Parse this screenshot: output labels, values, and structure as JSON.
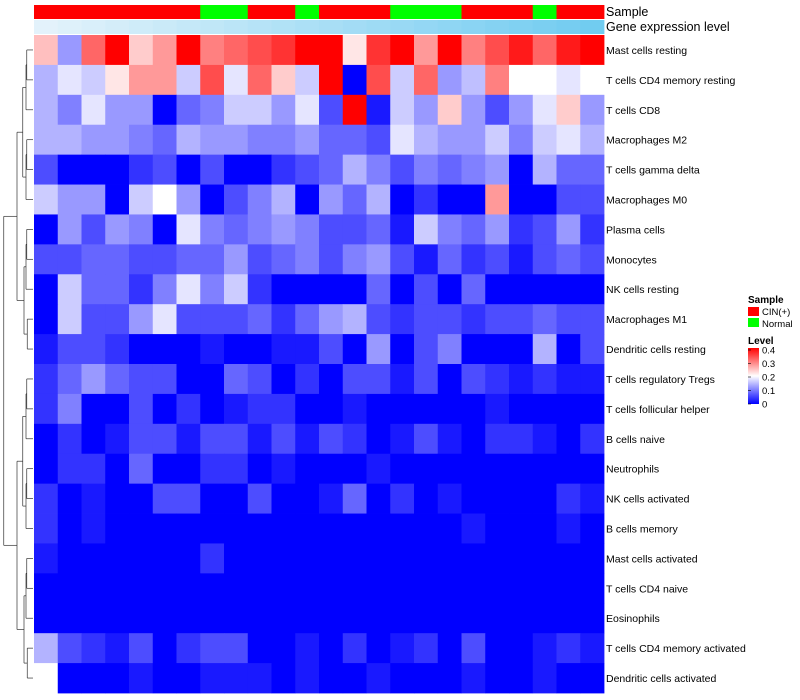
{
  "chart_data": {
    "type": "heatmap",
    "rows": [
      "Mast cells resting",
      "T cells CD4 memory resting",
      "T cells CD8",
      "Macrophages M2",
      "T cells gamma delta",
      "Macrophages M0",
      "Plasma cells",
      "Monocytes",
      "NK cells resting",
      "Macrophages M1",
      "Dendritic cells resting",
      "T cells regulatory  Tregs",
      "T cells follicular helper",
      "B cells naive",
      "Neutrophils",
      "NK cells activated",
      "B cells memory",
      "Mast cells activated",
      "T cells CD4 naive",
      "Eosinophils",
      "T cells CD4 memory activated",
      "Dendritic cells activated"
    ],
    "sample_groups": [
      "CIN(+)",
      "CIN(+)",
      "CIN(+)",
      "CIN(+)",
      "CIN(+)",
      "CIN(+)",
      "CIN(+)",
      "Normal",
      "Normal",
      "CIN(+)",
      "CIN(+)",
      "Normal",
      "CIN(+)",
      "CIN(+)",
      "CIN(+)",
      "Normal",
      "Normal",
      "Normal",
      "CIN(+)",
      "CIN(+)",
      "CIN(+)",
      "Normal",
      "CIN(+)",
      "CIN(+)"
    ],
    "gene_expression_level": [
      0.02,
      0.04,
      0.06,
      0.08,
      0.1,
      0.12,
      0.14,
      0.16,
      0.18,
      0.2,
      0.22,
      0.24,
      0.26,
      0.28,
      0.3,
      0.32,
      0.34,
      0.36,
      0.38,
      0.4,
      0.42,
      0.44,
      0.46,
      0.48
    ],
    "values": [
      [
        0.25,
        0.12,
        0.32,
        0.4,
        0.24,
        0.28,
        0.4,
        0.3,
        0.32,
        0.34,
        0.36,
        0.4,
        0.4,
        0.22,
        0.36,
        0.4,
        0.28,
        0.4,
        0.3,
        0.34,
        0.38,
        0.32,
        0.38,
        0.4
      ],
      [
        0.14,
        0.18,
        0.16,
        0.22,
        0.28,
        0.28,
        0.16,
        0.34,
        0.18,
        0.32,
        0.24,
        0.16,
        0.4,
        0.0,
        0.34,
        0.16,
        0.32,
        0.12,
        0.15,
        0.3,
        0.2,
        0.2,
        0.18,
        0.2
      ],
      [
        0.14,
        0.1,
        0.18,
        0.12,
        0.12,
        0.0,
        0.08,
        0.1,
        0.16,
        0.16,
        0.12,
        0.18,
        0.06,
        0.4,
        0.02,
        0.16,
        0.12,
        0.24,
        0.12,
        0.06,
        0.12,
        0.18,
        0.24,
        0.12
      ],
      [
        0.14,
        0.14,
        0.12,
        0.12,
        0.1,
        0.08,
        0.14,
        0.12,
        0.12,
        0.1,
        0.1,
        0.12,
        0.08,
        0.08,
        0.06,
        0.18,
        0.14,
        0.12,
        0.12,
        0.16,
        0.1,
        0.16,
        0.18,
        0.14
      ],
      [
        0.06,
        0.0,
        0.0,
        0.0,
        0.04,
        0.06,
        0.0,
        0.06,
        0.0,
        0.0,
        0.04,
        0.06,
        0.08,
        0.14,
        0.1,
        0.06,
        0.1,
        0.08,
        0.1,
        0.12,
        0.0,
        0.14,
        0.08,
        0.08
      ],
      [
        0.16,
        0.12,
        0.12,
        0.0,
        0.16,
        0.2,
        0.12,
        0.0,
        0.06,
        0.1,
        0.14,
        0.0,
        0.12,
        0.08,
        0.14,
        0.0,
        0.04,
        0.0,
        0.0,
        0.28,
        0.0,
        0.0,
        0.06,
        0.06
      ],
      [
        0.0,
        0.12,
        0.06,
        0.12,
        0.1,
        0.0,
        0.18,
        0.1,
        0.08,
        0.1,
        0.12,
        0.1,
        0.06,
        0.06,
        0.08,
        0.02,
        0.16,
        0.1,
        0.08,
        0.12,
        0.04,
        0.06,
        0.12,
        0.04
      ],
      [
        0.06,
        0.06,
        0.08,
        0.08,
        0.06,
        0.06,
        0.08,
        0.08,
        0.12,
        0.06,
        0.08,
        0.1,
        0.06,
        0.1,
        0.12,
        0.06,
        0.02,
        0.08,
        0.04,
        0.06,
        0.02,
        0.06,
        0.08,
        0.06
      ],
      [
        0.0,
        0.16,
        0.08,
        0.08,
        0.04,
        0.1,
        0.18,
        0.1,
        0.16,
        0.04,
        0.0,
        0.0,
        0.0,
        0.0,
        0.08,
        0.0,
        0.06,
        0.0,
        0.08,
        0.0,
        0.0,
        0.0,
        0.0,
        0.0
      ],
      [
        0.0,
        0.16,
        0.06,
        0.06,
        0.12,
        0.18,
        0.06,
        0.06,
        0.06,
        0.08,
        0.04,
        0.08,
        0.12,
        0.14,
        0.06,
        0.04,
        0.06,
        0.06,
        0.04,
        0.06,
        0.06,
        0.08,
        0.06,
        0.06
      ],
      [
        0.02,
        0.06,
        0.06,
        0.04,
        0.0,
        0.0,
        0.0,
        0.02,
        0.0,
        0.0,
        0.02,
        0.02,
        0.06,
        0.0,
        0.12,
        0.0,
        0.06,
        0.1,
        0.0,
        0.0,
        0.0,
        0.14,
        0.0,
        0.06
      ],
      [
        0.04,
        0.08,
        0.12,
        0.08,
        0.06,
        0.06,
        0.0,
        0.0,
        0.08,
        0.06,
        0.0,
        0.04,
        0.0,
        0.06,
        0.06,
        0.02,
        0.06,
        0.0,
        0.06,
        0.04,
        0.02,
        0.04,
        0.02,
        0.02
      ],
      [
        0.04,
        0.1,
        0.0,
        0.0,
        0.06,
        0.0,
        0.04,
        0.0,
        0.02,
        0.04,
        0.04,
        0.0,
        0.0,
        0.02,
        0.0,
        0.0,
        0.0,
        0.0,
        0.0,
        0.02,
        0.0,
        0.0,
        0.0,
        0.0
      ],
      [
        0.0,
        0.04,
        0.0,
        0.02,
        0.06,
        0.06,
        0.02,
        0.06,
        0.06,
        0.02,
        0.06,
        0.02,
        0.06,
        0.04,
        0.0,
        0.02,
        0.06,
        0.02,
        0.0,
        0.04,
        0.04,
        0.02,
        0.0,
        0.04
      ],
      [
        0.0,
        0.04,
        0.04,
        0.0,
        0.08,
        0.0,
        0.0,
        0.04,
        0.04,
        0.0,
        0.02,
        0.0,
        0.0,
        0.0,
        0.02,
        0.0,
        0.0,
        0.0,
        0.0,
        0.0,
        0.0,
        0.0,
        0.0,
        0.0
      ],
      [
        0.04,
        0.0,
        0.02,
        0.0,
        0.0,
        0.06,
        0.06,
        0.0,
        0.0,
        0.06,
        0.0,
        0.0,
        0.02,
        0.08,
        0.0,
        0.04,
        0.0,
        0.02,
        0.0,
        0.0,
        0.0,
        0.0,
        0.04,
        0.02
      ],
      [
        0.04,
        0.0,
        0.02,
        0.0,
        0.0,
        0.0,
        0.0,
        0.0,
        0.0,
        0.0,
        0.0,
        0.0,
        0.0,
        0.0,
        0.0,
        0.0,
        0.0,
        0.0,
        0.02,
        0.0,
        0.0,
        0.0,
        0.02,
        0.0
      ],
      [
        0.02,
        0.0,
        0.0,
        0.0,
        0.0,
        0.0,
        0.0,
        0.04,
        0.0,
        0.0,
        0.0,
        0.0,
        0.0,
        0.0,
        0.0,
        0.0,
        0.0,
        0.0,
        0.0,
        0.0,
        0.0,
        0.0,
        0.0,
        0.0
      ],
      [
        0.0,
        0.0,
        0.0,
        0.0,
        0.0,
        0.0,
        0.0,
        0.0,
        0.0,
        0.0,
        0.0,
        0.0,
        0.0,
        0.0,
        0.0,
        0.0,
        0.0,
        0.0,
        0.0,
        0.0,
        0.0,
        0.0,
        0.0,
        0.0
      ],
      [
        0.0,
        0.0,
        0.0,
        0.0,
        0.0,
        0.0,
        0.0,
        0.0,
        0.0,
        0.0,
        0.0,
        0.0,
        0.0,
        0.0,
        0.0,
        0.0,
        0.0,
        0.0,
        0.0,
        0.0,
        0.0,
        0.0,
        0.0,
        0.0
      ],
      [
        0.14,
        0.06,
        0.04,
        0.02,
        0.06,
        0.0,
        0.04,
        0.06,
        0.06,
        0.0,
        0.0,
        0.02,
        0.0,
        0.04,
        0.0,
        0.02,
        0.04,
        0.0,
        0.06,
        0.0,
        0.0,
        0.02,
        0.04,
        0.02
      ],
      [
        0.2,
        0.0,
        0.0,
        0.0,
        0.02,
        0.0,
        0.0,
        0.02,
        0.02,
        0.02,
        0.0,
        0.02,
        0.0,
        0.0,
        0.02,
        0.0,
        0.0,
        0.0,
        0.02,
        0.0,
        0.0,
        0.02,
        0.0,
        0.0
      ]
    ],
    "annotation_labels": {
      "sample": "Sample",
      "gene": "Gene expression level"
    },
    "legend_sample": {
      "title": "Sample",
      "items": [
        {
          "label": "CIN(+)",
          "color": "#ff0000"
        },
        {
          "label": "Normal",
          "color": "#00ff00"
        }
      ]
    },
    "legend_level": {
      "title": "Level",
      "range": [
        0,
        0.4
      ],
      "ticks": [
        "0.4",
        "0.3",
        "0.2",
        "0.1",
        "0"
      ]
    },
    "colors": {
      "low": "#0000ff",
      "mid": "#ffffff",
      "high": "#ff0000",
      "gene_low": "#e8f4fb",
      "gene_high": "#6ccaf0"
    },
    "dendrogram": "row clustering (left)"
  }
}
